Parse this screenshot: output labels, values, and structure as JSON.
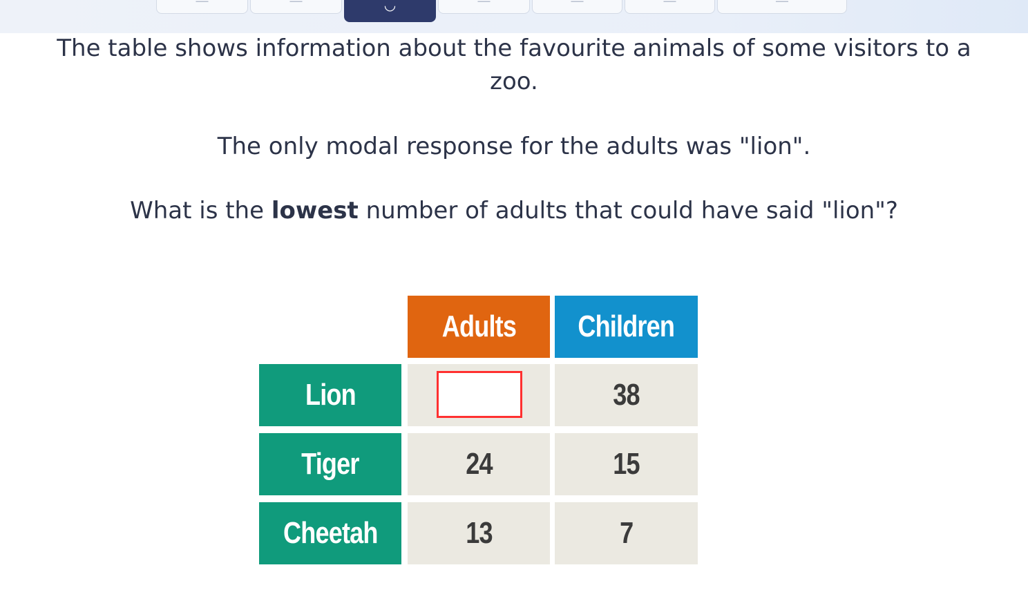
{
  "tabs": [
    {
      "glyph": "—",
      "active": false
    },
    {
      "glyph": "—",
      "active": false
    },
    {
      "glyph": "◡",
      "active": true
    },
    {
      "glyph": "—",
      "active": false
    },
    {
      "glyph": "—",
      "active": false
    },
    {
      "glyph": "—",
      "active": false
    },
    {
      "glyph": "—",
      "active": false
    }
  ],
  "question": {
    "line1": "The table shows information about the favourite animals of some visitors to a",
    "line2": "zoo.",
    "line3": "The only modal response for the adults was \"lion\".",
    "line4_before": "What is the ",
    "line4_bold": "lowest",
    "line4_after": " number of adults that could have said \"lion\"?"
  },
  "table": {
    "headers": {
      "adults": "Adults",
      "children": "Children"
    },
    "rows": [
      {
        "animal": "Lion",
        "adults": "",
        "children": "38"
      },
      {
        "animal": "Tiger",
        "adults": "24",
        "children": "15"
      },
      {
        "animal": "Cheetah",
        "adults": "13",
        "children": "7"
      }
    ]
  },
  "answer": {
    "value": ""
  },
  "colors": {
    "adults_header": "#e06510",
    "children_header": "#1291cd",
    "row_header": "#109b7c",
    "data_cell": "#ebe9e1",
    "answer_border": "#ff3030",
    "active_tab": "#2e3a6b"
  }
}
